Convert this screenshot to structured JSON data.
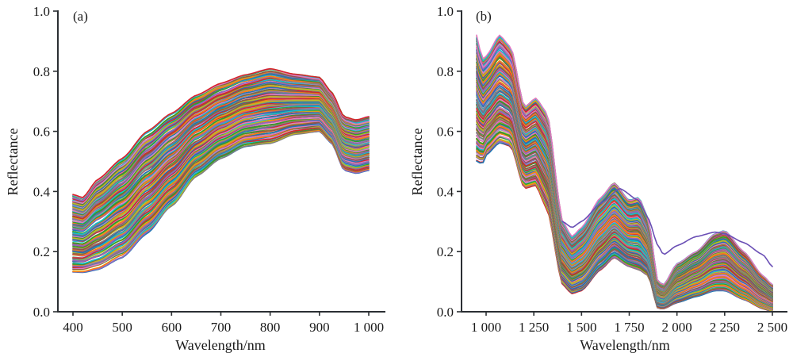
{
  "palette": [
    "#1f77b4",
    "#ff7f0e",
    "#2ca02c",
    "#d62728",
    "#9467bd",
    "#8c564b",
    "#e377c2",
    "#7f7f7f",
    "#bcbd22",
    "#17becf"
  ],
  "chart_data": [
    {
      "type": "line",
      "panel_label": "(a)",
      "title": "",
      "xlabel": "Wavelength/nm",
      "ylabel": "Reflectance",
      "xlim": [
        370,
        1030
      ],
      "ylim": [
        0.0,
        1.0
      ],
      "x_ticks": [
        400,
        500,
        600,
        700,
        800,
        900,
        1000
      ],
      "x_tick_labels": [
        "400",
        "500",
        "600",
        "700",
        "800",
        "900",
        "1 000"
      ],
      "y_ticks": [
        0.0,
        0.2,
        0.4,
        0.6,
        0.8,
        1.0
      ],
      "y_tick_labels": [
        "0.0",
        "0.2",
        "0.4",
        "0.6",
        "0.8",
        "1.0"
      ],
      "grid": false,
      "legend": "none",
      "n_series_approx": 150,
      "envelope": {
        "x": [
          400,
          420,
          450,
          500,
          550,
          600,
          650,
          700,
          750,
          800,
          850,
          900,
          925,
          950,
          975,
          1000
        ],
        "upper": [
          0.39,
          0.38,
          0.44,
          0.51,
          0.6,
          0.66,
          0.72,
          0.76,
          0.79,
          0.81,
          0.79,
          0.78,
          0.73,
          0.65,
          0.64,
          0.65
        ],
        "lower": [
          0.13,
          0.13,
          0.14,
          0.18,
          0.26,
          0.35,
          0.45,
          0.51,
          0.55,
          0.56,
          0.59,
          0.6,
          0.56,
          0.47,
          0.46,
          0.47
        ]
      }
    },
    {
      "type": "line",
      "panel_label": "(b)",
      "title": "",
      "xlabel": "Wavelength/nm",
      "ylabel": "Reflectance",
      "xlim": [
        850,
        2530
      ],
      "ylim": [
        0.0,
        1.0
      ],
      "x_ticks": [
        1000,
        1250,
        1500,
        1750,
        2000,
        2250,
        2500
      ],
      "x_tick_labels": [
        "1 000",
        "1 250",
        "1 500",
        "1 750",
        "2 000",
        "2 250",
        "2 500"
      ],
      "y_ticks": [
        0.0,
        0.2,
        0.4,
        0.6,
        0.8,
        1.0
      ],
      "y_tick_labels": [
        "0.0",
        "0.2",
        "0.4",
        "0.6",
        "0.8",
        "1.0"
      ],
      "grid": false,
      "legend": "none",
      "n_series_approx": 150,
      "envelope": {
        "x": [
          950,
          980,
          1000,
          1070,
          1130,
          1200,
          1260,
          1320,
          1400,
          1450,
          1500,
          1600,
          1670,
          1750,
          1800,
          1850,
          1900,
          1930,
          2000,
          2100,
          2200,
          2250,
          2350,
          2450,
          2500
        ],
        "upper": [
          0.92,
          0.84,
          0.85,
          0.92,
          0.88,
          0.68,
          0.71,
          0.66,
          0.3,
          0.25,
          0.28,
          0.38,
          0.43,
          0.37,
          0.38,
          0.31,
          0.1,
          0.09,
          0.16,
          0.2,
          0.26,
          0.27,
          0.2,
          0.12,
          0.09
        ],
        "lower": [
          0.5,
          0.49,
          0.52,
          0.56,
          0.55,
          0.41,
          0.42,
          0.34,
          0.09,
          0.06,
          0.07,
          0.14,
          0.18,
          0.15,
          0.14,
          0.12,
          0.01,
          0.01,
          0.03,
          0.05,
          0.07,
          0.07,
          0.04,
          0.01,
          0.0
        ]
      },
      "outlier_series": {
        "x": [
          1400,
          1450,
          1500,
          1600,
          1700,
          1800,
          1850,
          1900,
          1930,
          2000,
          2100,
          2200,
          2250,
          2350,
          2450,
          2500
        ],
        "y": [
          0.3,
          0.28,
          0.3,
          0.36,
          0.41,
          0.37,
          0.31,
          0.22,
          0.19,
          0.22,
          0.25,
          0.265,
          0.26,
          0.23,
          0.19,
          0.15
        ],
        "color": "#6a4fb5"
      }
    }
  ]
}
